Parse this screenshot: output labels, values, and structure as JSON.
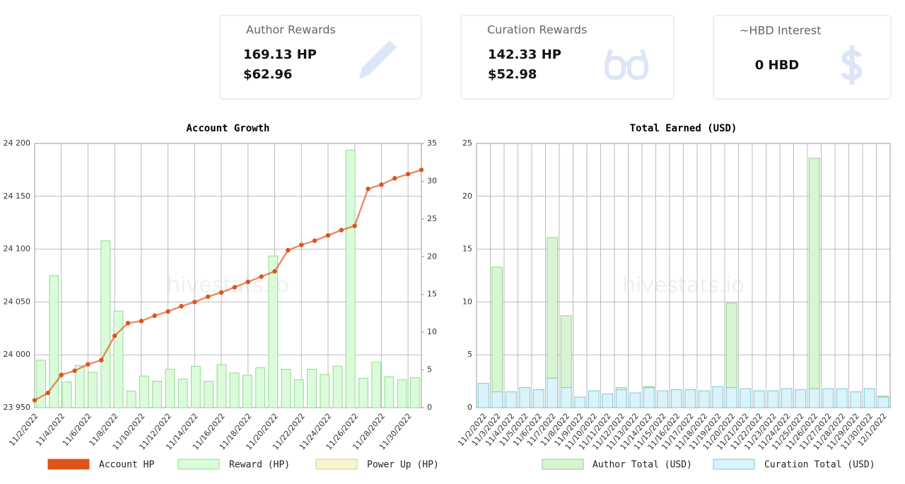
{
  "cards": [
    {
      "title": "Author Rewards",
      "lines": [
        "169.13 HP",
        "$62.96"
      ]
    },
    {
      "title": "Curation Rewards",
      "lines": [
        "142.33 HP",
        "$52.98"
      ]
    },
    {
      "title": "~HBD Interest",
      "lines": [
        "0 HBD"
      ]
    }
  ],
  "chart_data": [
    {
      "type": "combo",
      "title": "Account Growth",
      "watermark": "hivestats.io",
      "categories": [
        "11/2/2022",
        null,
        "11/4/2022",
        null,
        "11/6/2022",
        null,
        "11/8/2022",
        null,
        "11/10/2022",
        null,
        "11/12/2022",
        null,
        "11/14/2022",
        null,
        "11/16/2022",
        null,
        "11/18/2022",
        null,
        "11/20/2022",
        null,
        "11/22/2022",
        null,
        "11/24/2022",
        null,
        "11/26/2022",
        null,
        "11/28/2022",
        null,
        "11/30/2022",
        null
      ],
      "ylim": [
        23950,
        24200
      ],
      "yticks": [
        {
          "value": 23950,
          "label": "23 950"
        },
        {
          "value": 24000,
          "label": "24 000"
        },
        {
          "value": 24050,
          "label": "24 050"
        },
        {
          "value": 24100,
          "label": "24 100"
        },
        {
          "value": 24150,
          "label": "24 150"
        },
        {
          "value": 24200,
          "label": "24 200"
        }
      ],
      "y2lim": [
        0,
        35
      ],
      "y2ticks": [
        0,
        5,
        10,
        15,
        20,
        25,
        30,
        35
      ],
      "grid": true,
      "series": [
        {
          "name": "Account HP",
          "type": "line",
          "color": "#e0521c",
          "values": [
            23957,
            23964,
            23981,
            23985,
            23991,
            23995,
            24018,
            24030,
            24032,
            24037,
            24041,
            24046,
            24050,
            24055,
            24059,
            24064,
            24069,
            24074,
            24079,
            24099,
            24104,
            24108,
            24113,
            24118,
            24122,
            24157,
            24161,
            24167,
            24171,
            24175
          ]
        },
        {
          "name": "Reward (HP)",
          "type": "bar",
          "axis": "y2",
          "color": "#dbfbdb",
          "values": [
            6.3,
            17.5,
            3.4,
            5.6,
            4.7,
            22.1,
            12.8,
            2.2,
            4.2,
            3.5,
            5.1,
            3.8,
            5.5,
            3.5,
            5.7,
            4.6,
            4.3,
            5.3,
            20.1,
            5.1,
            3.7,
            5.1,
            4.4,
            5.5,
            34.1,
            3.9,
            6.0,
            4.1,
            3.7,
            4.0
          ]
        },
        {
          "name": "Power Up (HP)",
          "type": "bar",
          "axis": "y2",
          "color": "#f8f3d0",
          "values": [
            null,
            null,
            null,
            null,
            null,
            null,
            null,
            null,
            null,
            null,
            null,
            null,
            null,
            null,
            null,
            null,
            null,
            null,
            null,
            null,
            null,
            null,
            null,
            null,
            null,
            null,
            null,
            null,
            null,
            null
          ]
        }
      ]
    },
    {
      "type": "stacked_bar",
      "title": "Total Earned (USD)",
      "watermark": "hivestats.io",
      "categories": [
        "11/2/2022",
        "11/3/2022",
        "11/4/2022",
        "11/5/2022",
        "11/6/2022",
        "11/7/2022",
        "11/8/2022",
        "11/9/2022",
        "11/10/2022",
        "11/11/2022",
        "11/12/2022",
        "11/13/2022",
        "11/14/2022",
        "11/15/2022",
        "11/16/2022",
        "11/17/2022",
        "11/18/2022",
        "11/19/2022",
        "11/20/2022",
        "11/21/2022",
        "11/22/2022",
        "11/23/2022",
        "11/24/2022",
        "11/25/2022",
        "11/26/2022",
        "11/27/2022",
        "11/28/2022",
        "11/29/2022",
        "11/30/2022",
        "12/1/2022"
      ],
      "ylim": [
        0,
        25
      ],
      "yticks": [
        0,
        5,
        10,
        15,
        20,
        25
      ],
      "grid": true,
      "series": [
        {
          "name": "Author Total (USD)",
          "color": "#d8f5d2",
          "values": [
            0,
            11.8,
            0,
            0,
            0,
            13.3,
            6.8,
            0,
            0,
            0,
            0.2,
            0,
            0.1,
            0,
            0,
            0,
            0,
            0,
            8.0,
            0,
            0,
            0,
            0,
            0,
            21.8,
            0,
            0,
            0,
            0,
            0.1
          ]
        },
        {
          "name": "Curation Total (USD)",
          "color": "#dbf3fa",
          "values": [
            2.3,
            1.5,
            1.5,
            1.9,
            1.7,
            2.8,
            1.9,
            1.0,
            1.6,
            1.3,
            1.7,
            1.4,
            1.9,
            1.6,
            1.7,
            1.7,
            1.6,
            2.0,
            1.9,
            1.8,
            1.6,
            1.6,
            1.8,
            1.7,
            1.8,
            1.8,
            1.8,
            1.5,
            1.8,
            1.0
          ]
        }
      ]
    }
  ]
}
